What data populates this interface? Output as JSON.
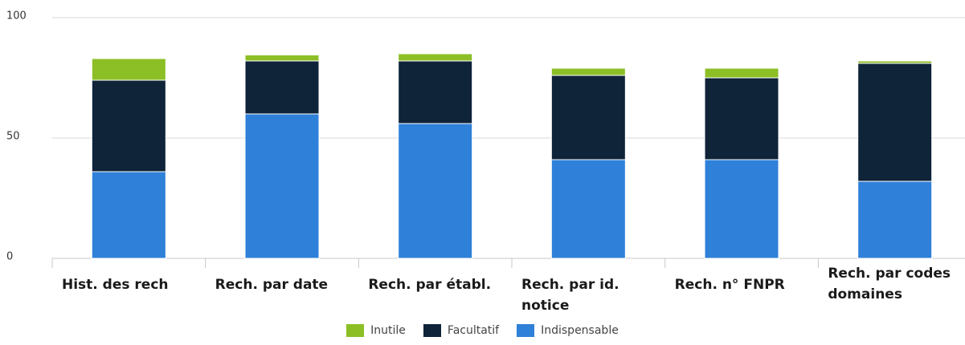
{
  "chart_data": {
    "type": "stacked_bar",
    "categories": [
      "Hist. des rech",
      "Rech. par date",
      "Rech. par établ.",
      "Rech. par id. notice",
      "Rech. n° FNPR",
      "Rech. par codes domaines"
    ],
    "series": [
      {
        "name": "Inutile",
        "color": "#8cbf26",
        "values": [
          9,
          2.5,
          3,
          3,
          4,
          1
        ]
      },
      {
        "name": "Facultatif",
        "color": "#0f2339",
        "values": [
          38,
          22,
          26,
          35,
          34,
          49
        ]
      },
      {
        "name": "Indispensable",
        "color": "#2f80d8",
        "values": [
          36,
          60,
          56,
          41,
          41,
          32
        ]
      }
    ],
    "ylim": [
      0,
      100
    ],
    "yticks": [
      0,
      50,
      100
    ],
    "grid": true,
    "legend": "bottom"
  }
}
